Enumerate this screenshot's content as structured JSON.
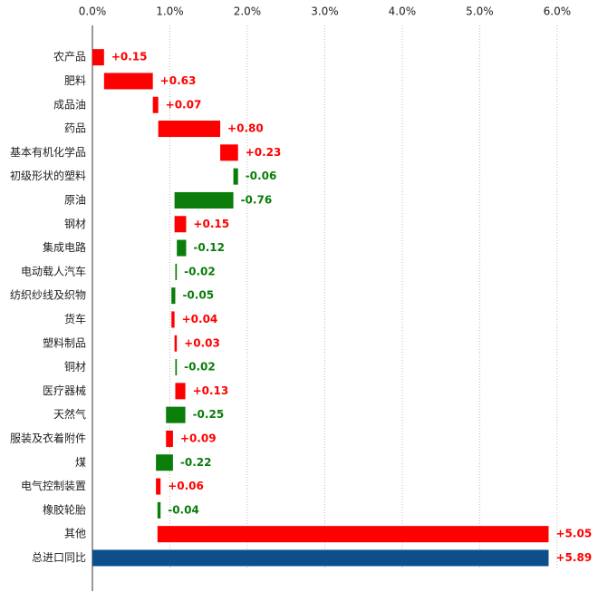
{
  "chart_data": {
    "type": "waterfall",
    "categories": [
      "农产品",
      "肥料",
      "成品油",
      "药品",
      "基本有机化学品",
      "初级形状的塑料",
      "原油",
      "钢材",
      "集成电路",
      "电动载人汽车",
      "纺织纱线及织物",
      "货车",
      "塑料制品",
      "铜材",
      "医疗器械",
      "天然气",
      "服装及衣着附件",
      "煤",
      "电气控制装置",
      "橡胶轮胎",
      "其他",
      "总进口同比"
    ],
    "values": [
      0.15,
      0.63,
      0.07,
      0.8,
      0.23,
      -0.06,
      -0.76,
      0.15,
      -0.12,
      -0.02,
      -0.05,
      0.04,
      0.03,
      -0.02,
      0.13,
      -0.25,
      0.09,
      -0.22,
      0.06,
      -0.04,
      5.05,
      5.89
    ],
    "value_labels": [
      "+0.15",
      "+0.63",
      "+0.07",
      "+0.80",
      "+0.23",
      "-0.06",
      "-0.76",
      "+0.15",
      "-0.12",
      "-0.02",
      "-0.05",
      "+0.04",
      "+0.03",
      "-0.02",
      "+0.13",
      "-0.25",
      "+0.09",
      "-0.22",
      "+0.06",
      "-0.04",
      "+5.05",
      "+5.89"
    ],
    "positive_color": "#ff0000",
    "negative_color": "#0a7d0a",
    "total_color": "#0d4f8b",
    "xlim": [
      0,
      6.2
    ],
    "xticks": [
      {
        "value": 0,
        "label": "0.0%"
      },
      {
        "value": 1,
        "label": "1.0%"
      },
      {
        "value": 2,
        "label": "2.0%"
      },
      {
        "value": 3,
        "label": "3.0%"
      },
      {
        "value": 4,
        "label": "4.0%"
      },
      {
        "value": 5,
        "label": "5.0%"
      },
      {
        "value": 6,
        "label": "6.0%"
      }
    ],
    "grid": true
  }
}
